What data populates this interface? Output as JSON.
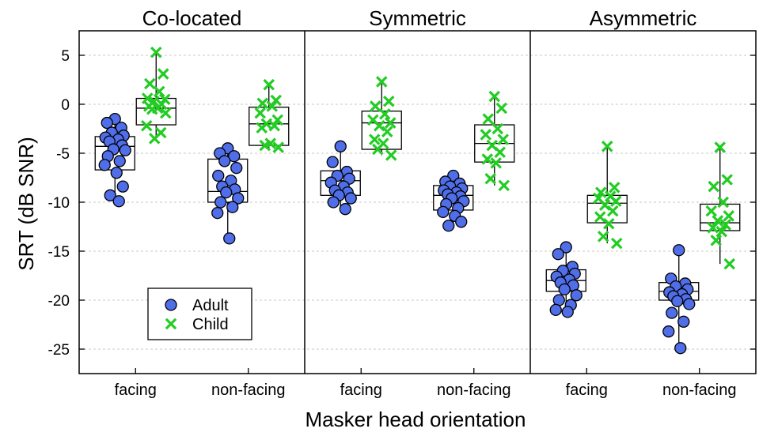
{
  "chart_data": {
    "type": "scatter",
    "panels": [
      "Co-located",
      "Symmetric",
      "Asymmetric"
    ],
    "categories": [
      "facing",
      "non-facing"
    ],
    "xlabel": "Masker head orientation",
    "ylabel": "SRT (dB SNR)",
    "ylim": [
      -27.5,
      7.5
    ],
    "yticks": [
      5,
      0,
      -5,
      -10,
      -15,
      -20,
      -25
    ],
    "grid": "horizontal dotted",
    "legend_position": "bottom-left of first panel",
    "colors": {
      "adult": "#4f6ee8",
      "child": "#22cc22"
    },
    "series": [
      {
        "name": "Adult",
        "marker": "circle"
      },
      {
        "name": "Child",
        "marker": "x"
      }
    ],
    "groups": [
      {
        "panel": 0,
        "category": 0,
        "series": "Adult",
        "box": {
          "min": -9.9,
          "q1": -6.7,
          "median": -4.3,
          "q3": -3.3,
          "max": -1.5
        },
        "points": [
          -1.5,
          -1.9,
          -2.4,
          -2.9,
          -3.2,
          -3.4,
          -3.6,
          -3.8,
          -4.2,
          -4.6,
          -4.7,
          -5.3,
          -5.8,
          -6.2,
          -7.0,
          -8.4,
          -9.3,
          -9.9
        ]
      },
      {
        "panel": 0,
        "category": 0,
        "series": "Child",
        "box": {
          "min": -3.5,
          "q1": -2.1,
          "median": -0.4,
          "q3": 0.6,
          "max": 5.3
        },
        "points": [
          5.3,
          3.1,
          2.1,
          1.3,
          0.6,
          0.5,
          0.3,
          0.0,
          -0.2,
          -0.4,
          -0.5,
          -0.9,
          -2.2,
          -2.9,
          -3.5
        ]
      },
      {
        "panel": 0,
        "category": 1,
        "series": "Adult",
        "box": {
          "min": -13.7,
          "q1": -10.0,
          "median": -8.9,
          "q3": -5.6,
          "max": -4.5
        },
        "points": [
          -4.5,
          -5.0,
          -5.3,
          -5.8,
          -6.5,
          -7.3,
          -7.8,
          -8.4,
          -8.7,
          -9.0,
          -9.6,
          -10.0,
          -10.5,
          -11.1,
          -13.7
        ]
      },
      {
        "panel": 0,
        "category": 1,
        "series": "Child",
        "box": {
          "min": -4.5,
          "q1": -4.2,
          "median": -2.0,
          "q3": -0.3,
          "max": 2.0
        },
        "points": [
          2.0,
          0.4,
          0.1,
          -0.2,
          -0.9,
          -1.6,
          -2.0,
          -2.2,
          -2.4,
          -4.0,
          -4.2,
          -4.4
        ]
      },
      {
        "panel": 1,
        "category": 0,
        "series": "Adult",
        "box": {
          "min": -10.7,
          "q1": -9.3,
          "median": -7.8,
          "q3": -6.8,
          "max": -4.3
        },
        "points": [
          -4.3,
          -5.9,
          -6.9,
          -7.3,
          -7.6,
          -8.0,
          -8.4,
          -8.8,
          -9.0,
          -9.3,
          -9.6,
          -10.0,
          -10.7
        ]
      },
      {
        "panel": 1,
        "category": 0,
        "series": "Child",
        "box": {
          "min": -5.2,
          "q1": -4.6,
          "median": -1.9,
          "q3": -0.7,
          "max": 2.3
        },
        "points": [
          2.3,
          0.3,
          -0.2,
          -1.0,
          -1.6,
          -1.9,
          -2.2,
          -2.8,
          -3.6,
          -4.0,
          -4.6,
          -5.2
        ]
      },
      {
        "panel": 1,
        "category": 1,
        "series": "Adult",
        "box": {
          "min": -12.4,
          "q1": -10.8,
          "median": -9.3,
          "q3": -8.3,
          "max": -7.3
        },
        "points": [
          -7.3,
          -7.9,
          -8.1,
          -8.4,
          -8.6,
          -8.8,
          -9.0,
          -9.2,
          -9.4,
          -9.6,
          -9.9,
          -10.2,
          -10.6,
          -11.0,
          -11.4,
          -12.0,
          -12.4
        ]
      },
      {
        "panel": 1,
        "category": 1,
        "series": "Child",
        "box": {
          "min": -8.3,
          "q1": -5.9,
          "median": -4.0,
          "q3": -2.1,
          "max": 0.8
        },
        "points": [
          0.8,
          -0.4,
          -1.5,
          -2.5,
          -3.1,
          -3.6,
          -4.2,
          -4.9,
          -5.6,
          -6.0,
          -7.6,
          -8.3
        ]
      },
      {
        "panel": 2,
        "category": 0,
        "series": "Adult",
        "box": {
          "min": -21.2,
          "q1": -19.1,
          "median": -18.0,
          "q3": -16.9,
          "max": -14.6
        },
        "points": [
          -14.6,
          -15.3,
          -16.6,
          -17.0,
          -17.3,
          -17.6,
          -17.9,
          -18.2,
          -18.5,
          -18.9,
          -19.5,
          -20.0,
          -20.5,
          -21.0,
          -21.2
        ]
      },
      {
        "panel": 2,
        "category": 0,
        "series": "Child",
        "box": {
          "min": -14.2,
          "q1": -12.1,
          "median": -10.1,
          "q3": -9.3,
          "max": -4.3
        },
        "points": [
          -4.3,
          -8.5,
          -9.0,
          -9.4,
          -9.6,
          -9.9,
          -10.3,
          -10.9,
          -11.5,
          -12.2,
          -13.5,
          -14.2
        ]
      },
      {
        "panel": 2,
        "category": 1,
        "series": "Adult",
        "box": {
          "min": -24.9,
          "q1": -20.0,
          "median": -19.1,
          "q3": -18.2,
          "max": -14.9
        },
        "points": [
          -14.9,
          -17.8,
          -18.3,
          -18.6,
          -18.9,
          -19.2,
          -19.4,
          -19.6,
          -19.9,
          -20.1,
          -20.4,
          -21.3,
          -22.2,
          -23.2,
          -24.9
        ]
      },
      {
        "panel": 2,
        "category": 1,
        "series": "Child",
        "box": {
          "min": -16.3,
          "q1": -12.9,
          "median": -12.1,
          "q3": -10.2,
          "max": -4.4
        },
        "points": [
          -4.4,
          -7.7,
          -8.4,
          -10.0,
          -10.9,
          -11.4,
          -11.9,
          -12.3,
          -12.6,
          -13.0,
          -13.9,
          -16.3
        ]
      }
    ]
  }
}
